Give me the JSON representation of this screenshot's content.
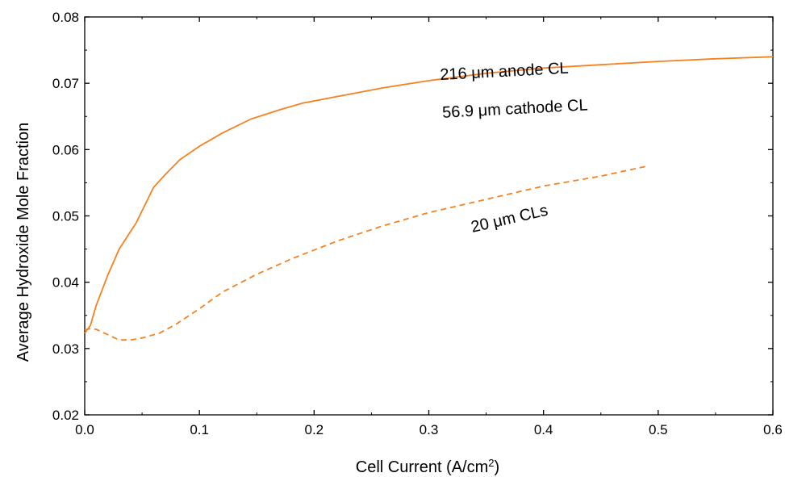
{
  "chart_data": {
    "type": "line",
    "xlabel": "Cell Current (A/cm",
    "xlabel_sup": "2",
    "xlabel_close": ")",
    "ylabel": "Average Hydroxide Mole Fraction",
    "xlim": [
      0.0,
      0.6
    ],
    "ylim": [
      0.02,
      0.08
    ],
    "x_ticks": [
      "0.0",
      "0.1",
      "0.2",
      "0.3",
      "0.4",
      "0.5",
      "0.6"
    ],
    "y_ticks": [
      "0.02",
      "0.03",
      "0.04",
      "0.05",
      "0.06",
      "0.07",
      "0.08"
    ],
    "grid": false,
    "series_color": "#F5821F",
    "series": [
      {
        "style": "solid",
        "x": [
          0.0,
          0.005,
          0.01,
          0.02,
          0.03,
          0.045,
          0.06,
          0.07,
          0.083,
          0.1,
          0.12,
          0.145,
          0.17,
          0.19,
          0.22,
          0.26,
          0.3,
          0.35,
          0.4,
          0.45,
          0.5,
          0.55,
          0.6
        ],
        "y": [
          0.0323,
          0.0335,
          0.0365,
          0.041,
          0.045,
          0.049,
          0.0543,
          0.0562,
          0.0585,
          0.0605,
          0.0625,
          0.0646,
          0.066,
          0.067,
          0.068,
          0.0693,
          0.0704,
          0.0715,
          0.0723,
          0.0728,
          0.0733,
          0.0737,
          0.074
        ]
      },
      {
        "style": "dashed",
        "x": [
          0.0,
          0.005,
          0.01,
          0.02,
          0.03,
          0.04,
          0.05,
          0.065,
          0.08,
          0.1,
          0.12,
          0.15,
          0.18,
          0.22,
          0.26,
          0.3,
          0.35,
          0.4,
          0.45,
          0.49
        ],
        "y": [
          0.0328,
          0.033,
          0.0329,
          0.0321,
          0.0313,
          0.0313,
          0.0316,
          0.0323,
          0.0337,
          0.036,
          0.0385,
          0.0412,
          0.0435,
          0.0462,
          0.0485,
          0.0505,
          0.0525,
          0.0545,
          0.056,
          0.0575
        ]
      }
    ],
    "annotations": [
      {
        "text": "216 μm anode CL",
        "x": 0.31,
        "y": 0.0705,
        "rotate": -3
      },
      {
        "text": "56.9 μm cathode CL",
        "x": 0.312,
        "y": 0.0648,
        "rotate": -3
      },
      {
        "text": "20 μm CLs",
        "x": 0.338,
        "y": 0.0475,
        "rotate": -13
      }
    ]
  }
}
